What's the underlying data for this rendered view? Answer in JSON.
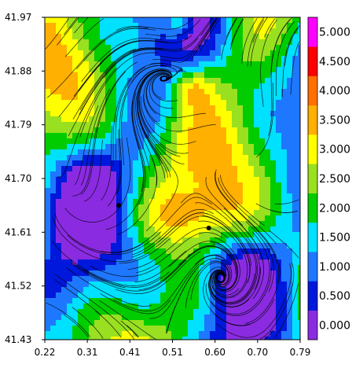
{
  "chart_data": {
    "type": "heatmap",
    "title": "",
    "xlabel": "",
    "ylabel": "",
    "x_ticks": [
      "0.22",
      "0.31",
      "0.41",
      "0.51",
      "0.60",
      "0.70",
      "0.79"
    ],
    "y_ticks": [
      "41.97",
      "41.88",
      "41.79",
      "41.70",
      "41.61",
      "41.52",
      "41.43"
    ],
    "xlim": [
      0.22,
      0.79
    ],
    "ylim": [
      41.43,
      41.97
    ],
    "colorbar": {
      "labels": [
        "0.000",
        "0.500",
        "1.000",
        "1.500",
        "2.000",
        "2.500",
        "3.000",
        "3.500",
        "4.000",
        "4.500",
        "5.000"
      ],
      "colors": [
        "#8a2be2",
        "#0018dc",
        "#1e78ff",
        "#00e0ff",
        "#00cc00",
        "#99e020",
        "#ffff00",
        "#ffb000",
        "#ff7000",
        "#ff0000",
        "#ff00ff"
      ],
      "range": [
        0,
        5.5
      ]
    },
    "overlay": "streamlines",
    "markers": [
      {
        "x": 0.385,
        "y": 41.655
      },
      {
        "x": 0.586,
        "y": 41.617
      }
    ],
    "grid": false
  }
}
